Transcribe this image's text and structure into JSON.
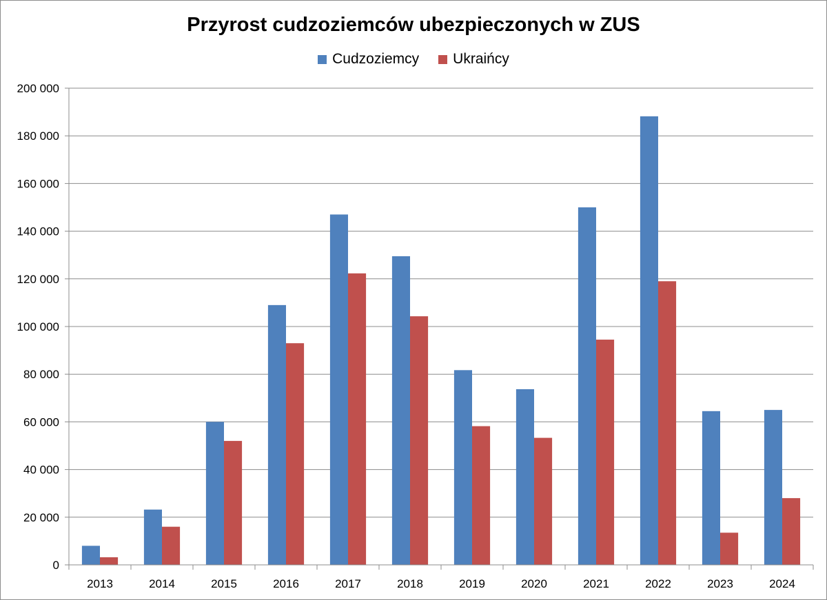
{
  "chart_data": {
    "type": "bar",
    "title": "Przyrost cudzoziemców ubezpieczonych w ZUS",
    "xlabel": "",
    "ylabel": "",
    "categories": [
      "2013",
      "2014",
      "2015",
      "2016",
      "2017",
      "2018",
      "2019",
      "2020",
      "2021",
      "2022",
      "2023",
      "2024"
    ],
    "series": [
      {
        "name": "Cudzoziemcy",
        "color": "#4f81bd",
        "values": [
          8000,
          23200,
          60000,
          109000,
          147000,
          129500,
          81700,
          73700,
          150000,
          188200,
          64500,
          65000
        ]
      },
      {
        "name": "Ukraińcy",
        "color": "#c0504d",
        "values": [
          3200,
          16000,
          52000,
          93000,
          122300,
          104300,
          58200,
          53300,
          94500,
          119000,
          13500,
          28000
        ]
      }
    ],
    "ylim": [
      0,
      200000
    ],
    "y_ticks": [
      0,
      20000,
      40000,
      60000,
      80000,
      100000,
      120000,
      140000,
      160000,
      180000,
      200000
    ],
    "y_tick_labels": [
      "0",
      "20 000",
      "40 000",
      "60 000",
      "80 000",
      "100 000",
      "120 000",
      "140 000",
      "160 000",
      "180 000",
      "200 000"
    ],
    "grid": true,
    "legend_position": "top"
  }
}
